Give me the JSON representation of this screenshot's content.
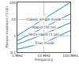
{
  "chart_data": {
    "type": "line",
    "x_label": "Frequency",
    "y_label": "Thermal resistance (°C/W)",
    "x": [
      1000000,
      10000000,
      100000000
    ],
    "series": [
      {
        "name": "Classic single mode",
        "color": "#2f86c8",
        "values": [
          1,
          10,
          100
        ]
      },
      {
        "name": "Rapid (10 ns)",
        "color": "#2f86c8",
        "values": [
          0.5,
          3,
          20
        ]
      },
      {
        "name": "Semi-rapid (1 µs)",
        "color": "#2f86c8",
        "values": [
          0.3,
          1.2,
          6
        ]
      },
      {
        "name": "Triac mode",
        "color": "#2f86c8",
        "values": [
          0.15,
          0.35,
          2
        ]
      }
    ],
    "xlim": [
      1000000,
      100000000
    ],
    "xticks": [
      {
        "value": 1000000,
        "label": "1 MHz"
      },
      {
        "value": 10000000,
        "label": "10 MHz"
      },
      {
        "value": 100000000,
        "label": "100 MHz"
      }
    ],
    "ylim": [
      0.1,
      100
    ],
    "yticks": [
      0.1,
      1,
      10,
      100
    ],
    "log": true,
    "grid": true
  }
}
